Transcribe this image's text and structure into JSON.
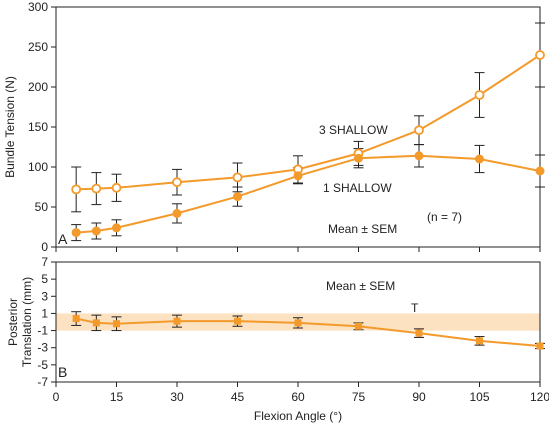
{
  "chart_data": [
    {
      "panel_label": "A",
      "type": "line",
      "x": [
        5,
        10,
        15,
        30,
        45,
        60,
        75,
        90,
        105,
        120
      ],
      "ylabel": "Bundle Tension (N)",
      "ylim": [
        0,
        300
      ],
      "yticks": [
        0,
        50,
        100,
        150,
        200,
        250,
        300
      ],
      "xlim": [
        0,
        120
      ],
      "series": [
        {
          "name": "3 SHALLOW",
          "marker": "open-circle",
          "values": [
            72,
            73,
            74,
            81,
            87,
            97,
            117,
            146,
            190,
            240
          ],
          "sem": [
            28,
            20,
            17,
            16,
            18,
            17,
            15,
            18,
            28,
            40
          ]
        },
        {
          "name": "1 SHALLOW",
          "marker": "filled-circle",
          "values": [
            18,
            20,
            24,
            42,
            63,
            89,
            111,
            114,
            110,
            95
          ],
          "sem": [
            10,
            10,
            10,
            12,
            12,
            10,
            12,
            14,
            17,
            20
          ]
        }
      ],
      "annotations": [
        "Mean ± SEM",
        "(n = 7)"
      ],
      "grid": false
    },
    {
      "panel_label": "B",
      "type": "line",
      "x": [
        5,
        10,
        15,
        30,
        45,
        60,
        75,
        90,
        105,
        120
      ],
      "xlabel": "Flexion Angle (°)",
      "ylabel": [
        "Posterior",
        "Translation (mm)"
      ],
      "ylim": [
        -7,
        7
      ],
      "yticks": [
        -7,
        -5,
        -3,
        -1,
        1,
        3,
        5,
        7
      ],
      "xlim": [
        0,
        120
      ],
      "xticks": [
        0,
        15,
        30,
        45,
        60,
        75,
        90,
        105,
        120
      ],
      "band": [
        -1,
        1
      ],
      "series": [
        {
          "marker": "filled-square",
          "values": [
            0.4,
            -0.1,
            -0.2,
            0.1,
            0.1,
            -0.1,
            -0.5,
            -1.3,
            -2.2,
            -2.8
          ],
          "sem": [
            0.8,
            0.9,
            0.8,
            0.7,
            0.6,
            0.6,
            0.4,
            0.5,
            0.5,
            0.3
          ]
        }
      ],
      "annotations": [
        "Mean ± SEM",
        "T"
      ],
      "grid": false
    }
  ],
  "colors": {
    "line": "#f39a2b",
    "errorbar": "#222222",
    "band": "#fbd8ac",
    "axis": "#222222"
  }
}
